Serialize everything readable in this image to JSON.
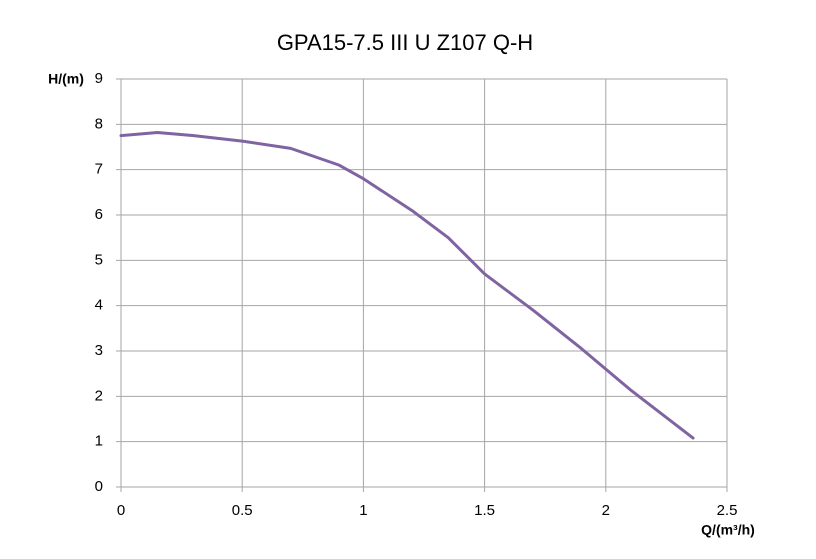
{
  "chart_data": {
    "type": "line",
    "title": "GPA15-7.5 III U Z107 Q-H",
    "x_label": "Q/(m³/h)",
    "y_label": "H/(m)",
    "x": [
      0,
      0.15,
      0.3,
      0.5,
      0.7,
      0.9,
      1.0,
      1.2,
      1.35,
      1.5,
      1.7,
      1.9,
      2.1,
      2.36
    ],
    "values": [
      7.75,
      7.82,
      7.75,
      7.63,
      7.47,
      7.1,
      6.8,
      6.1,
      5.5,
      4.7,
      3.9,
      3.05,
      2.15,
      1.08
    ],
    "color": "#8064a2",
    "xlim": [
      0,
      2.5
    ],
    "xticks": [
      0,
      0.5,
      1,
      1.5,
      2,
      2.5
    ],
    "ylim": [
      0,
      9
    ],
    "yticks": [
      0,
      1,
      2,
      3,
      4,
      5,
      6,
      7,
      8,
      9
    ],
    "grid": true
  }
}
